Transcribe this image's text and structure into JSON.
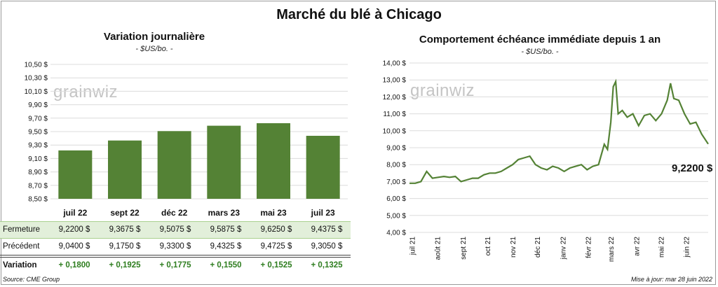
{
  "title": "Marché du blé à Chicago",
  "left": {
    "title": "Variation journalière",
    "unit": "- $US/bo. -",
    "watermark": "grainwiz",
    "y_ticks": [
      "10,50 $",
      "10,30 $",
      "10,10 $",
      "9,90 $",
      "9,70 $",
      "9,50 $",
      "9,30 $",
      "9,10 $",
      "8,90 $",
      "8,70 $",
      "8,50 $"
    ],
    "table": {
      "close_label": "Fermeture",
      "prev_label": "Précédent",
      "var_label": "Variation",
      "close": [
        "9,2200  $",
        "9,3675  $",
        "9,5075  $",
        "9,5875  $",
        "9,6250  $",
        "9,4375  $"
      ],
      "prev": [
        "9,0400  $",
        "9,1750  $",
        "9,3300  $",
        "9,4325  $",
        "9,4725  $",
        "9,3050  $"
      ],
      "var": [
        "+ 0,1800",
        "+ 0,1925",
        "+ 0,1775",
        "+ 0,1550",
        "+ 0,1525",
        "+ 0,1325"
      ]
    }
  },
  "right": {
    "title": "Comportement  échéance immédiate depuis 1 an",
    "unit": "- $US/bo. -",
    "watermark": "grainwiz",
    "y_ticks": [
      "14,00 $",
      "13,00 $",
      "12,00 $",
      "11,00 $",
      "10,00 $",
      "9,00 $",
      "8,00 $",
      "7,00 $",
      "6,00 $",
      "5,00 $",
      "4,00 $"
    ],
    "x_ticks": [
      "juil 21",
      "août 21",
      "sept 21",
      "oct 21",
      "nov 21",
      "déc 21",
      "janv 22",
      "févr 22",
      "mars 22",
      "avr 22",
      "mai 22",
      "juin 22"
    ],
    "last_value": "9,2200 $"
  },
  "footer": {
    "source": "Source: CME Group",
    "update": "Mise à jour: mar 28 juin 2022"
  },
  "colors": {
    "series": "#548235",
    "highlight_row": "#e2efda",
    "positive": "#2e7d1f"
  },
  "chart_data": [
    {
      "type": "bar",
      "categories": [
        "juil 22",
        "sept 22",
        "déc 22",
        "mars 23",
        "mai 23",
        "juil 23"
      ],
      "values": [
        9.22,
        9.3675,
        9.5075,
        9.5875,
        9.625,
        9.4375
      ],
      "ylim": [
        8.5,
        10.5
      ],
      "grid": true
    },
    {
      "type": "line",
      "x": [
        "2021-06-28",
        "2021-07-05",
        "2021-07-12",
        "2021-07-19",
        "2021-07-26",
        "2021-08-02",
        "2021-08-09",
        "2021-08-16",
        "2021-08-23",
        "2021-08-30",
        "2021-09-06",
        "2021-09-13",
        "2021-09-20",
        "2021-09-27",
        "2021-10-04",
        "2021-10-11",
        "2021-10-18",
        "2021-10-25",
        "2021-11-01",
        "2021-11-08",
        "2021-11-15",
        "2021-11-22",
        "2021-11-29",
        "2021-12-06",
        "2021-12-13",
        "2021-12-20",
        "2021-12-27",
        "2022-01-03",
        "2022-01-10",
        "2022-01-17",
        "2022-01-24",
        "2022-01-31",
        "2022-02-07",
        "2022-02-14",
        "2022-02-21",
        "2022-02-25",
        "2022-03-01",
        "2022-03-04",
        "2022-03-07",
        "2022-03-10",
        "2022-03-15",
        "2022-03-21",
        "2022-03-28",
        "2022-04-04",
        "2022-04-11",
        "2022-04-18",
        "2022-04-25",
        "2022-05-02",
        "2022-05-09",
        "2022-05-13",
        "2022-05-17",
        "2022-05-23",
        "2022-05-30",
        "2022-06-06",
        "2022-06-13",
        "2022-06-20",
        "2022-06-28"
      ],
      "y": [
        6.9,
        6.9,
        7.0,
        7.6,
        7.2,
        7.25,
        7.3,
        7.25,
        7.3,
        7.0,
        7.1,
        7.2,
        7.2,
        7.4,
        7.5,
        7.5,
        7.6,
        7.8,
        8.0,
        8.3,
        8.4,
        8.5,
        8.0,
        7.8,
        7.7,
        7.9,
        7.8,
        7.6,
        7.8,
        7.9,
        8.0,
        7.7,
        7.9,
        8.0,
        9.2,
        8.9,
        10.5,
        12.6,
        12.9,
        11.0,
        11.2,
        10.8,
        11.0,
        10.3,
        10.9,
        11.0,
        10.6,
        11.0,
        11.8,
        12.8,
        11.9,
        11.8,
        11.0,
        10.4,
        10.5,
        9.8,
        9.22
      ],
      "ylim": [
        4,
        14
      ],
      "grid": true
    }
  ]
}
